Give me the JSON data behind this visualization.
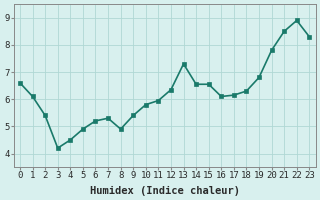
{
  "x": [
    0,
    1,
    2,
    3,
    4,
    5,
    6,
    7,
    8,
    9,
    10,
    11,
    12,
    13,
    14,
    15,
    16,
    17,
    18,
    19,
    20,
    21,
    22,
    23
  ],
  "y": [
    6.6,
    6.1,
    5.4,
    4.2,
    4.5,
    4.9,
    5.2,
    5.3,
    4.9,
    5.4,
    5.8,
    5.95,
    6.35,
    7.3,
    6.55,
    6.55,
    6.1,
    6.15,
    6.3,
    6.8,
    7.8,
    8.5,
    8.9,
    8.3
  ],
  "line_color": "#1a7a6a",
  "marker_color": "#1a7a6a",
  "bg_color": "#d8f0ee",
  "grid_color": "#b0d8d4",
  "xlabel": "Humidex (Indice chaleur)",
  "xlim_min": -0.5,
  "xlim_max": 23.5,
  "ylim_min": 3.5,
  "ylim_max": 9.5,
  "yticks": [
    4,
    5,
    6,
    7,
    8,
    9
  ],
  "xticks": [
    0,
    1,
    2,
    3,
    4,
    5,
    6,
    7,
    8,
    9,
    10,
    11,
    12,
    13,
    14,
    15,
    16,
    17,
    18,
    19,
    20,
    21,
    22,
    23
  ],
  "xlabel_fontsize": 7.5,
  "tick_fontsize": 6.5,
  "line_width": 1.2,
  "marker_size": 3
}
